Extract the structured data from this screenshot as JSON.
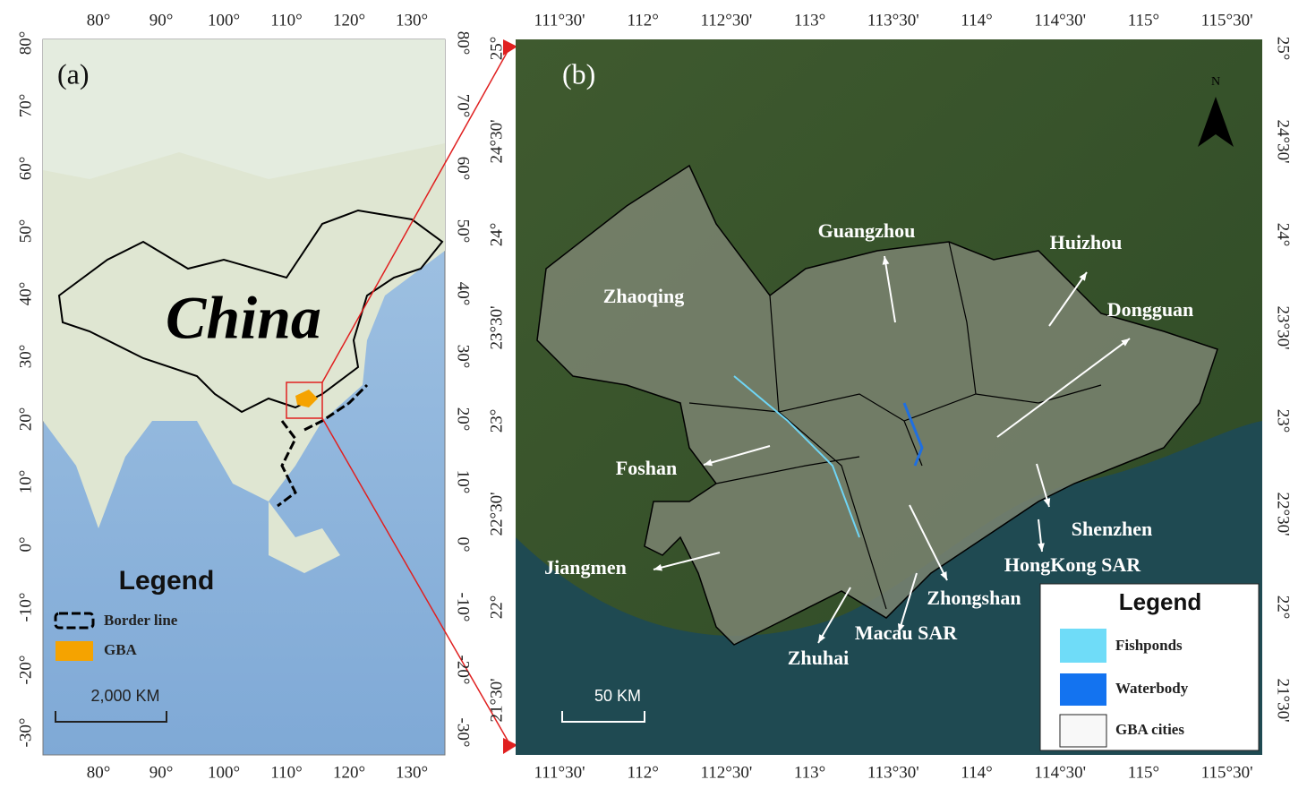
{
  "panel_a": {
    "label": "(a)",
    "country": "China",
    "lon_ticks": [
      "80°",
      "90°",
      "100°",
      "110°",
      "120°",
      "130°"
    ],
    "lat_ticks": [
      "80°",
      "70°",
      "60°",
      "50°",
      "40°",
      "30°",
      "20°",
      "10°",
      "0°",
      "-10°",
      "-20°",
      "-30°"
    ],
    "legend": {
      "title": "Legend",
      "items": [
        "Border line",
        "GBA"
      ]
    },
    "scale": "2,000 KM"
  },
  "panel_b": {
    "label": "(b)",
    "north": "N",
    "lon_ticks": [
      "111°30'",
      "112°",
      "112°30'",
      "113°",
      "113°30'",
      "114°",
      "114°30'",
      "115°",
      "115°30'"
    ],
    "lat_ticks": [
      "25°",
      "24°30'",
      "24°",
      "23°30'",
      "23°",
      "22°30'",
      "22°",
      "21°30'"
    ],
    "cities": [
      "Guangzhou",
      "Huizhou",
      "Zhaoqing",
      "Dongguan",
      "Foshan",
      "Jiangmen",
      "Shenzhen",
      "HongKong SAR",
      "Zhongshan",
      "Macau SAR",
      "Zhuhai"
    ],
    "legend": {
      "title": "Legend",
      "items": [
        "Fishponds",
        "Waterbody",
        "GBA cities"
      ]
    },
    "scale": "50 KM"
  }
}
